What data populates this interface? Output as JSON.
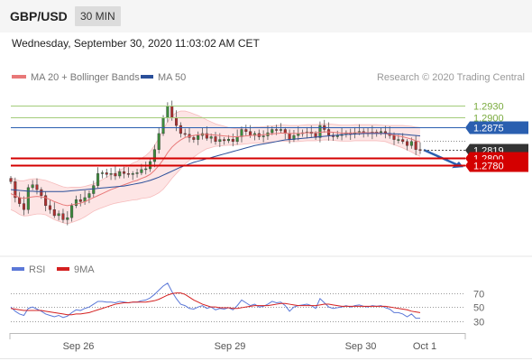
{
  "header": {
    "symbol": "GBP/USD",
    "timeframe": "30 MIN",
    "timestamp": "Wednesday, September 30, 2020 11:03:02 AM CET"
  },
  "legend": {
    "ma20": "MA 20 + Bollinger Bands",
    "ma50": "MA 50",
    "copyright": "Research © 2020 Trading Central",
    "rsi": "RSI",
    "ma9": "9MA"
  },
  "colors": {
    "ma20": "#e87878",
    "ma50": "#2a4f9a",
    "band_fill": "#fde0e0",
    "green_level": "#a3cc7a",
    "blue_level": "#2a5fb0",
    "red_level": "#d40000",
    "current": "#333333",
    "rsi": "#5b78d8",
    "ma9": "#d42020",
    "arrow": "#2a5fb0"
  },
  "chart_data": [
    {
      "type": "candlestick",
      "ylim": [
        1.2585,
        1.2968
      ],
      "x_ticks": [
        "Sep 26",
        "Sep 29",
        "Sep 30",
        "Oct 1"
      ],
      "levels": [
        {
          "value": 1.293,
          "label": "1.2930",
          "kind": "green"
        },
        {
          "value": 1.29,
          "label": "1.2900",
          "kind": "green"
        },
        {
          "value": 1.2875,
          "label": "1.2875",
          "kind": "blue"
        },
        {
          "value": 1.2819,
          "label": "1.2819",
          "kind": "current"
        },
        {
          "value": 1.28,
          "label": "1.2800",
          "kind": "red"
        },
        {
          "value": 1.278,
          "label": "1.2780",
          "kind": "red"
        }
      ],
      "close_series": [
        1.274,
        1.27,
        1.2685,
        1.267,
        1.2725,
        1.2732,
        1.272,
        1.2705,
        1.268,
        1.267,
        1.2655,
        1.266,
        1.2645,
        1.265,
        1.268,
        1.2695,
        1.269,
        1.27,
        1.271,
        1.273,
        1.276,
        1.2762,
        1.2758,
        1.276,
        1.2754,
        1.2765,
        1.276,
        1.2758,
        1.276,
        1.2762,
        1.277,
        1.2772,
        1.279,
        1.282,
        1.286,
        1.29,
        1.2928,
        1.29,
        1.288,
        1.286,
        1.2858,
        1.285,
        1.2845,
        1.2855,
        1.286,
        1.2848,
        1.2852,
        1.284,
        1.2845,
        1.2842,
        1.2846,
        1.284,
        1.2852,
        1.287,
        1.2865,
        1.2855,
        1.286,
        1.2852,
        1.2854,
        1.2862,
        1.287,
        1.2868,
        1.287,
        1.286,
        1.2845,
        1.2855,
        1.286,
        1.2862,
        1.2864,
        1.286,
        1.285,
        1.288,
        1.287,
        1.2856,
        1.2852,
        1.2855,
        1.2858,
        1.2862,
        1.2858,
        1.2862,
        1.2865,
        1.2862,
        1.286,
        1.2864,
        1.2862,
        1.2865,
        1.286,
        1.2855,
        1.2845,
        1.2845,
        1.284,
        1.283,
        1.284,
        1.282,
        1.2819
      ],
      "ma20_series": [
        1.271,
        1.2705,
        1.27,
        1.2698,
        1.27,
        1.2702,
        1.2703,
        1.2702,
        1.27,
        1.2695,
        1.269,
        1.2686,
        1.2682,
        1.268,
        1.2682,
        1.2684,
        1.2686,
        1.269,
        1.2695,
        1.27,
        1.2705,
        1.271,
        1.2715,
        1.272,
        1.2724,
        1.2728,
        1.2732,
        1.2736,
        1.274,
        1.2743,
        1.2748,
        1.2752,
        1.2758,
        1.2768,
        1.278,
        1.2795,
        1.2812,
        1.2826,
        1.2836,
        1.2844,
        1.285,
        1.2853,
        1.2855,
        1.2857,
        1.2858,
        1.2858,
        1.2857,
        1.2856,
        1.2855,
        1.2854,
        1.2853,
        1.2852,
        1.2852,
        1.2853,
        1.2854,
        1.2855,
        1.2856,
        1.2856,
        1.2857,
        1.2858,
        1.2859,
        1.286,
        1.2861,
        1.2861,
        1.286,
        1.286,
        1.286,
        1.2861,
        1.2862,
        1.2862,
        1.2862,
        1.2863,
        1.2864,
        1.2864,
        1.2863,
        1.2862,
        1.2861,
        1.2861,
        1.2861,
        1.2862,
        1.2862,
        1.2862,
        1.2862,
        1.2862,
        1.2862,
        1.2861,
        1.286,
        1.2858,
        1.2856,
        1.2854,
        1.2852,
        1.2849,
        1.2846,
        1.2842,
        1.2839
      ],
      "ma50_series": [
        1.272,
        1.2719,
        1.2718,
        1.2717,
        1.2716,
        1.2716,
        1.2715,
        1.2715,
        1.2715,
        1.2715,
        1.2715,
        1.2715,
        1.2715,
        1.2716,
        1.2717,
        1.2718,
        1.2719,
        1.272,
        1.2721,
        1.2722,
        1.2723,
        1.2724,
        1.2725,
        1.2726,
        1.2727,
        1.2728,
        1.2729,
        1.2731,
        1.2733,
        1.2735,
        1.2737,
        1.274,
        1.2743,
        1.2747,
        1.2751,
        1.2756,
        1.2761,
        1.2766,
        1.2771,
        1.2776,
        1.278,
        1.2784,
        1.2788,
        1.2791,
        1.2794,
        1.2797,
        1.28,
        1.2803,
        1.2806,
        1.2809,
        1.2812,
        1.2815,
        1.2818,
        1.2821,
        1.2824,
        1.2827,
        1.283,
        1.2832,
        1.2834,
        1.2836,
        1.2838,
        1.284,
        1.2842,
        1.2844,
        1.2845,
        1.2846,
        1.2847,
        1.2848,
        1.2849,
        1.285,
        1.2851,
        1.2852,
        1.2853,
        1.2854,
        1.2855,
        1.2856,
        1.2857,
        1.2858,
        1.2858,
        1.2859,
        1.2859,
        1.286,
        1.286,
        1.286,
        1.286,
        1.286,
        1.286,
        1.286,
        1.2859,
        1.2859,
        1.2858,
        1.2857,
        1.2856,
        1.2855,
        1.2854
      ],
      "band_width": [
        0.004,
        0.004,
        0.0042,
        0.0044,
        0.0045,
        0.0045,
        0.0044,
        0.0043,
        0.0043,
        0.0044,
        0.0045,
        0.0045,
        0.0045,
        0.0045,
        0.0044,
        0.0042,
        0.004,
        0.0038,
        0.0036,
        0.0034,
        0.0034,
        0.0035,
        0.0036,
        0.0037,
        0.0038,
        0.004,
        0.0042,
        0.0044,
        0.0046,
        0.0048,
        0.005,
        0.0053,
        0.0057,
        0.0062,
        0.0068,
        0.0074,
        0.0078,
        0.0078,
        0.0076,
        0.0072,
        0.0066,
        0.006,
        0.0054,
        0.0048,
        0.0042,
        0.0036,
        0.0032,
        0.0028,
        0.0026,
        0.0024,
        0.0022,
        0.0021,
        0.002,
        0.002,
        0.002,
        0.002,
        0.002,
        0.002,
        0.002,
        0.002,
        0.002,
        0.002,
        0.002,
        0.002,
        0.002,
        0.002,
        0.002,
        0.002,
        0.002,
        0.002,
        0.002,
        0.002,
        0.002,
        0.002,
        0.002,
        0.002,
        0.002,
        0.002,
        0.002,
        0.002,
        0.002,
        0.002,
        0.002,
        0.002,
        0.002,
        0.002,
        0.002,
        0.0022,
        0.0024,
        0.0026,
        0.0028,
        0.003,
        0.0032,
        0.0034,
        0.0036
      ]
    },
    {
      "type": "line",
      "ylim": [
        18,
        85
      ],
      "y_ticks": [
        70,
        50,
        30
      ],
      "series": [
        {
          "name": "RSI",
          "values": [
            50,
            44,
            40,
            38,
            48,
            50,
            47,
            44,
            40,
            38,
            36,
            38,
            35,
            37,
            42,
            46,
            45,
            48,
            50,
            54,
            58,
            58,
            57,
            57,
            56,
            58,
            57,
            56,
            57,
            57,
            59,
            60,
            63,
            68,
            74,
            80,
            84,
            72,
            62,
            54,
            52,
            48,
            47,
            50,
            52,
            48,
            50,
            46,
            48,
            47,
            49,
            46,
            52,
            60,
            56,
            52,
            54,
            50,
            51,
            54,
            58,
            56,
            57,
            52,
            44,
            50,
            52,
            53,
            54,
            52,
            48,
            62,
            56,
            50,
            48,
            49,
            50,
            52,
            50,
            52,
            53,
            51,
            50,
            52,
            51,
            52,
            49,
            47,
            42,
            42,
            40,
            36,
            40,
            34,
            34
          ]
        },
        {
          "name": "9MA",
          "values": [
            48,
            47,
            46,
            45,
            45,
            45,
            45,
            45,
            44,
            43,
            42,
            41,
            40,
            39,
            39,
            40,
            40,
            41,
            42,
            44,
            46,
            48,
            50,
            52,
            54,
            55,
            56,
            56,
            57,
            57,
            57,
            57,
            58,
            59,
            61,
            64,
            67,
            69,
            70,
            70,
            68,
            64,
            60,
            57,
            54,
            52,
            50,
            50,
            49,
            49,
            49,
            48,
            48,
            49,
            50,
            51,
            52,
            52,
            52,
            52,
            53,
            54,
            55,
            55,
            54,
            53,
            52,
            52,
            52,
            52,
            52,
            53,
            54,
            54,
            53,
            52,
            51,
            51,
            51,
            51,
            51,
            51,
            51,
            51,
            51,
            51,
            51,
            50,
            49,
            48,
            47,
            46,
            44,
            43,
            42
          ]
        }
      ]
    }
  ]
}
